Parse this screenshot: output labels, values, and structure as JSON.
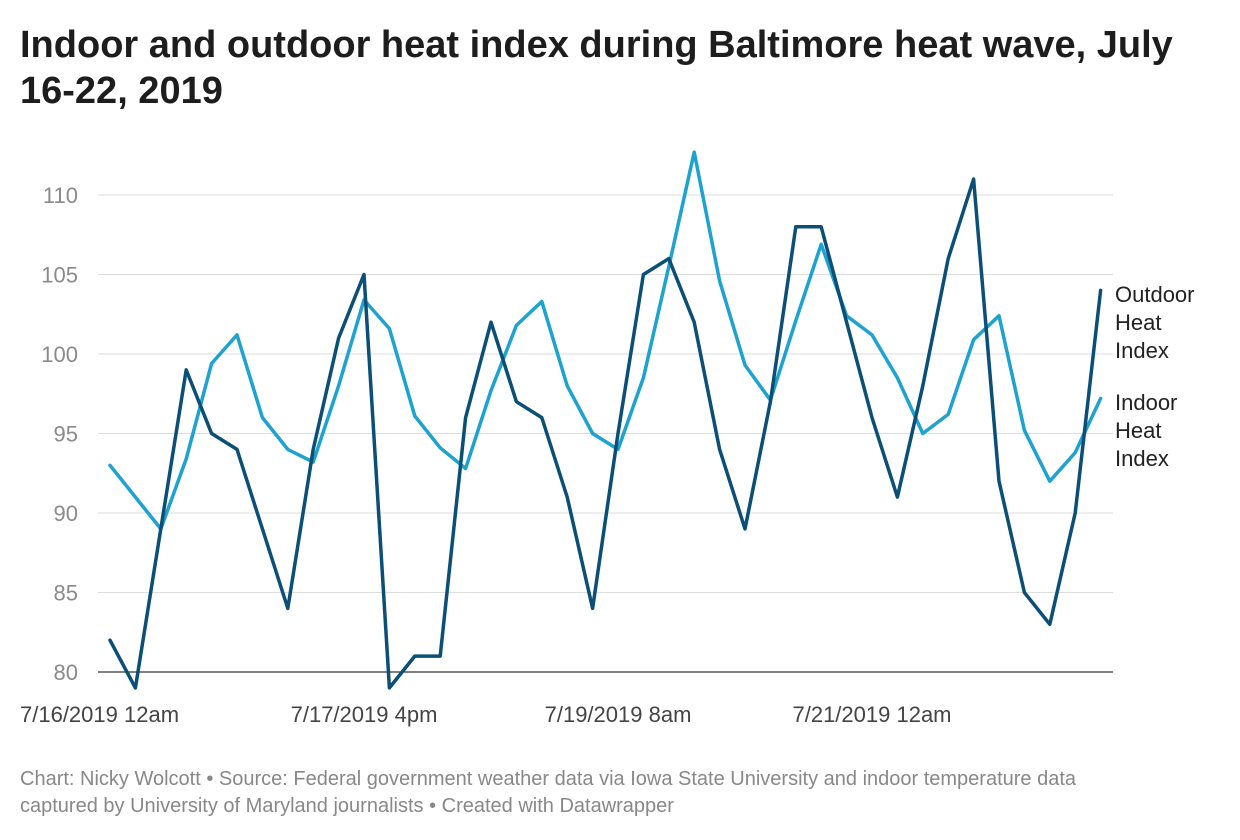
{
  "chart_data": {
    "type": "line",
    "title": "Indoor and outdoor heat index during Baltimore heat wave, July 16-22, 2019",
    "x_tick_labels": [
      "7/16/2019 12am",
      "7/17/2019 4pm",
      "7/19/2019 8am",
      "7/21/2019 12am"
    ],
    "x_tick_index": [
      0,
      10,
      20,
      30
    ],
    "ylim": [
      79,
      113
    ],
    "yticks": [
      80,
      85,
      90,
      95,
      100,
      105,
      110
    ],
    "grid": true,
    "legend": "direct labels at right end of lines",
    "series": [
      {
        "name": "Outdoor Heat Index",
        "label_lines": [
          "Outdoor",
          "Heat",
          "Index"
        ],
        "color": "#0b4f77",
        "values": [
          82,
          79,
          89,
          99,
          95,
          94,
          89,
          84,
          94,
          101,
          105,
          79,
          81,
          81,
          96,
          102,
          97,
          96,
          91,
          84,
          95,
          105,
          106,
          102,
          94,
          89,
          97,
          108,
          108,
          102,
          96,
          91,
          98,
          106,
          111,
          92,
          85,
          83,
          90,
          104
        ]
      },
      {
        "name": "Indoor Heat Index",
        "label_lines": [
          "Indoor",
          "Heat",
          "Index"
        ],
        "color": "#1ea2d0",
        "values": [
          93,
          91,
          89,
          93.4,
          99.4,
          101.2,
          96,
          94,
          93.2,
          98,
          103.4,
          101.6,
          96.1,
          94.1,
          92.8,
          97.7,
          101.8,
          103.3,
          98,
          95,
          94,
          98.5,
          105.5,
          112.7,
          104.6,
          99.3,
          97.1,
          102.1,
          106.9,
          102.4,
          101.2,
          98.5,
          95,
          96.2,
          100.9,
          102.4,
          95.2,
          92,
          93.8,
          97.2
        ]
      }
    ]
  },
  "footer": {
    "line1": "Chart: Nicky Wolcott • Source: Federal government weather data via Iowa State University and indoor temperature data",
    "line2": "captured by University of Maryland journalists • Created with Datawrapper"
  }
}
